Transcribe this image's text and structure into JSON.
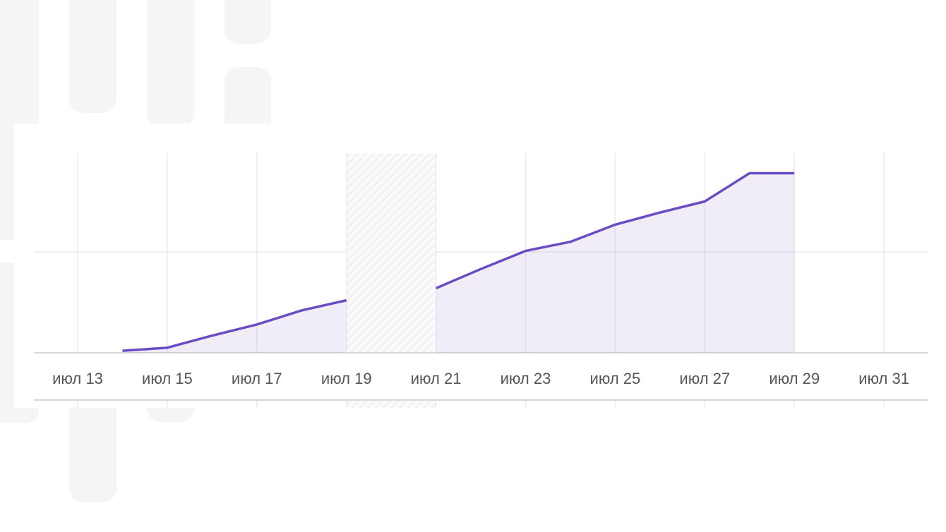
{
  "chart_data": {
    "type": "area",
    "categories": [
      "июл 13",
      null,
      "июл 15",
      null,
      "июл 17",
      null,
      "июл 19",
      null,
      "июл 21",
      null,
      "июл 23",
      null,
      "июл 25",
      null,
      "июл 27",
      null,
      "июл 29",
      null,
      "июл 31"
    ],
    "series": [
      {
        "color": "#6a4bc4",
        "values": [
          null,
          0.02,
          0.05,
          0.17,
          0.28,
          0.42,
          0.52,
          null,
          0.64,
          0.83,
          1.01,
          1.1,
          1.27,
          1.39,
          1.5,
          1.78,
          1.78,
          null,
          null
        ]
      }
    ],
    "ylim": [
      0,
      2
    ],
    "yticks": [
      0,
      1,
      2
    ],
    "grid": true
  }
}
